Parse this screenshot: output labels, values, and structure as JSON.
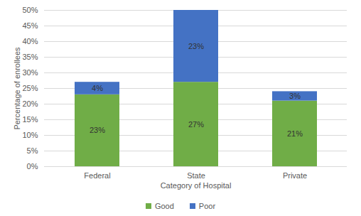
{
  "chart_data": {
    "type": "bar",
    "stacked": true,
    "x_label": "Category of Hospital",
    "y_label": "Percentage of enrollees",
    "categories": [
      "Federal",
      "State",
      "Private"
    ],
    "series": [
      {
        "name": "Good",
        "color": "#70ad47",
        "values": [
          23,
          27,
          21
        ],
        "value_labels": [
          "23%",
          "27%",
          "21%"
        ]
      },
      {
        "name": "Poor",
        "color": "#4472c4",
        "values": [
          4,
          23,
          3
        ],
        "value_labels": [
          "4%",
          "23%",
          "3%"
        ]
      }
    ],
    "ylim": [
      0,
      50
    ],
    "yticks": [
      {
        "value": 0,
        "label": "0%"
      },
      {
        "value": 5,
        "label": "5%"
      },
      {
        "value": 10,
        "label": "10%"
      },
      {
        "value": 15,
        "label": "15%"
      },
      {
        "value": 20,
        "label": "20%"
      },
      {
        "value": 25,
        "label": "25%"
      },
      {
        "value": 30,
        "label": "30%"
      },
      {
        "value": 35,
        "label": "35%"
      },
      {
        "value": 40,
        "label": "40%"
      },
      {
        "value": 45,
        "label": "45%"
      },
      {
        "value": 50,
        "label": "50%"
      }
    ],
    "grid": true,
    "legend": "bottom",
    "data_labels": true
  }
}
